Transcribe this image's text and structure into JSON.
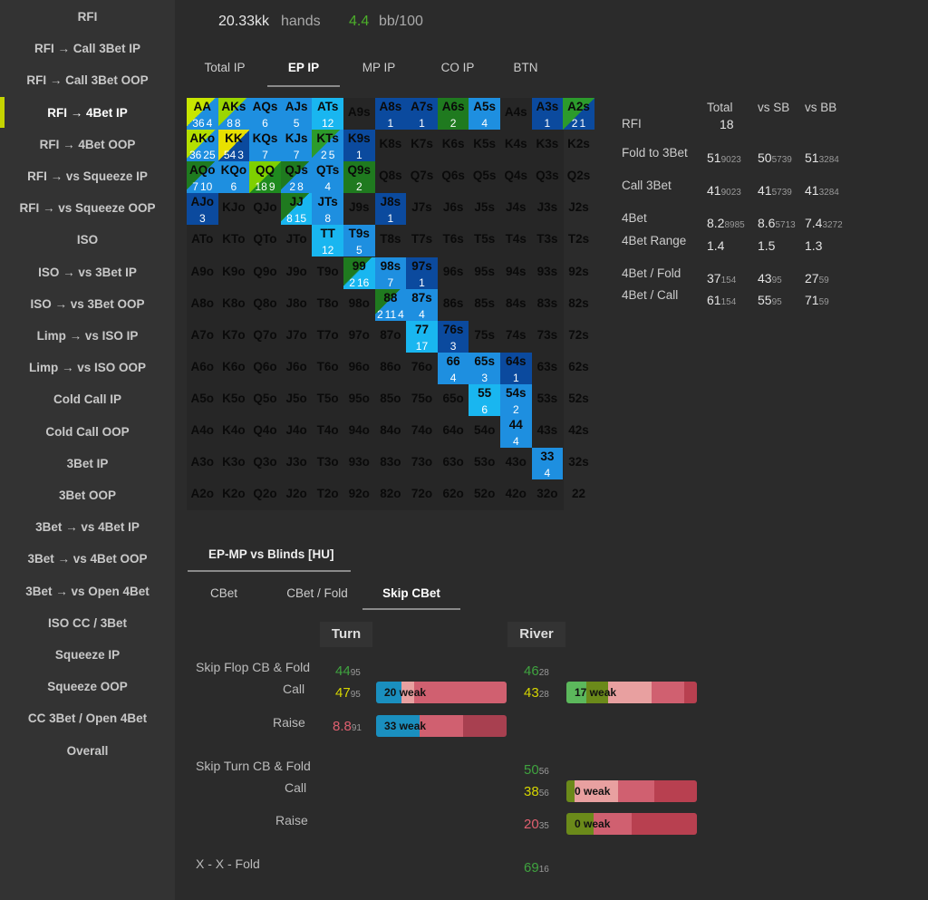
{
  "sidebar": {
    "items": [
      {
        "label": "RFI"
      },
      {
        "label": "RFI → Call 3Bet IP"
      },
      {
        "label": "RFI → Call 3Bet OOP"
      },
      {
        "label": "RFI → 4Bet IP",
        "active": true
      },
      {
        "label": "RFI → 4Bet OOP"
      },
      {
        "label": "RFI → vs Squeeze IP"
      },
      {
        "label": "RFI → vs Squeeze OOP"
      },
      {
        "label": "ISO"
      },
      {
        "label": "ISO → vs 3Bet IP"
      },
      {
        "label": "ISO → vs 3Bet OOP"
      },
      {
        "label": "Limp → vs ISO IP"
      },
      {
        "label": "Limp → vs ISO OOP"
      },
      {
        "label": "Cold Call IP"
      },
      {
        "label": "Cold Call OOP"
      },
      {
        "label": "3Bet IP"
      },
      {
        "label": "3Bet OOP"
      },
      {
        "label": "3Bet → vs 4Bet IP"
      },
      {
        "label": "3Bet → vs 4Bet OOP"
      },
      {
        "label": "3Bet → vs Open 4Bet"
      },
      {
        "label": "ISO CC / 3Bet"
      },
      {
        "label": "Squeeze IP"
      },
      {
        "label": "Squeeze OOP"
      },
      {
        "label": "CC 3Bet / Open 4Bet"
      },
      {
        "label": "Overall"
      }
    ]
  },
  "header": {
    "hands": "20.33kk",
    "hands_label": "hands",
    "winrate": "4.4",
    "winrate_label": "bb/100",
    "winrate_color": "#4caf2a"
  },
  "position_tabs": [
    "Total IP",
    "EP IP",
    "MP IP",
    "CO IP",
    "BTN"
  ],
  "grid": {
    "rows": [
      [
        "AA",
        "AKs",
        "AQs",
        "AJs",
        "ATs",
        "A9s",
        "A8s",
        "A7s",
        "A6s",
        "A5s",
        "A4s",
        "A3s",
        "A2s"
      ],
      [
        "AKo",
        "KK",
        "KQs",
        "KJs",
        "KTs",
        "K9s",
        "K8s",
        "K7s",
        "K6s",
        "K5s",
        "K4s",
        "K3s",
        "K2s"
      ],
      [
        "AQo",
        "KQo",
        "QQ",
        "QJs",
        "QTs",
        "Q9s",
        "Q8s",
        "Q7s",
        "Q6s",
        "Q5s",
        "Q4s",
        "Q3s",
        "Q2s"
      ],
      [
        "AJo",
        "KJo",
        "QJo",
        "JJ",
        "JTs",
        "J9s",
        "J8s",
        "J7s",
        "J6s",
        "J5s",
        "J4s",
        "J3s",
        "J2s"
      ],
      [
        "ATo",
        "KTo",
        "QTo",
        "JTo",
        "TT",
        "T9s",
        "T8s",
        "T7s",
        "T6s",
        "T5s",
        "T4s",
        "T3s",
        "T2s"
      ],
      [
        "A9o",
        "K9o",
        "Q9o",
        "J9o",
        "T9o",
        "99",
        "98s",
        "97s",
        "96s",
        "95s",
        "94s",
        "93s",
        "92s"
      ],
      [
        "A8o",
        "K8o",
        "Q8o",
        "J8o",
        "T8o",
        "98o",
        "88",
        "87s",
        "86s",
        "85s",
        "84s",
        "83s",
        "82s"
      ],
      [
        "A7o",
        "K7o",
        "Q7o",
        "J7o",
        "T7o",
        "97o",
        "87o",
        "77",
        "76s",
        "75s",
        "74s",
        "73s",
        "72s"
      ],
      [
        "A6o",
        "K6o",
        "Q6o",
        "J6o",
        "T6o",
        "96o",
        "86o",
        "76o",
        "66",
        "65s",
        "64s",
        "63s",
        "62s"
      ],
      [
        "A5o",
        "K5o",
        "Q5o",
        "J5o",
        "T5o",
        "95o",
        "85o",
        "75o",
        "65o",
        "55",
        "54s",
        "53s",
        "52s"
      ],
      [
        "A4o",
        "K4o",
        "Q4o",
        "J4o",
        "T4o",
        "94o",
        "84o",
        "74o",
        "64o",
        "54o",
        "44",
        "43s",
        "42s"
      ],
      [
        "A3o",
        "K3o",
        "Q3o",
        "J3o",
        "T3o",
        "93o",
        "83o",
        "73o",
        "63o",
        "53o",
        "43o",
        "33",
        "32s"
      ],
      [
        "A2o",
        "K2o",
        "Q2o",
        "J2o",
        "T2o",
        "92o",
        "82o",
        "72o",
        "62o",
        "52o",
        "42o",
        "32o",
        "22"
      ]
    ],
    "filled": [
      {
        "r": 0,
        "c": 0,
        "bg": "split-lime",
        "nums": [
          "36",
          "4"
        ]
      },
      {
        "r": 0,
        "c": 1,
        "bg": "split-green",
        "nums": [
          "8",
          "8"
        ]
      },
      {
        "r": 0,
        "c": 2,
        "bg": "#1e8fe0",
        "nums": [
          "6"
        ]
      },
      {
        "r": 0,
        "c": 3,
        "bg": "#1e8fe0",
        "nums": [
          "5"
        ]
      },
      {
        "r": 0,
        "c": 4,
        "bg": "#19b6f0",
        "nums": [
          "12"
        ]
      },
      {
        "r": 0,
        "c": 6,
        "bg": "#0b4a9e",
        "nums": [
          "1"
        ]
      },
      {
        "r": 0,
        "c": 7,
        "bg": "#0b4a9e",
        "nums": [
          "1"
        ]
      },
      {
        "r": 0,
        "c": 8,
        "bg": "#1f7a1f",
        "nums": [
          "2"
        ]
      },
      {
        "r": 0,
        "c": 9,
        "bg": "#1e8fe0",
        "nums": [
          "4"
        ]
      },
      {
        "r": 0,
        "c": 11,
        "bg": "#0b4a9e",
        "nums": [
          "1"
        ]
      },
      {
        "r": 0,
        "c": 12,
        "bg": "split-green2",
        "nums": [
          "2",
          "1"
        ]
      },
      {
        "r": 1,
        "c": 0,
        "bg": "split-lime2",
        "nums": [
          "36",
          "25"
        ]
      },
      {
        "r": 1,
        "c": 1,
        "bg": "split-yellow",
        "nums": [
          "54",
          "3"
        ]
      },
      {
        "r": 1,
        "c": 2,
        "bg": "#1e8fe0",
        "nums": [
          "7"
        ]
      },
      {
        "r": 1,
        "c": 3,
        "bg": "#1e8fe0",
        "nums": [
          "7"
        ]
      },
      {
        "r": 1,
        "c": 4,
        "bg": "split-kts",
        "nums": [
          "2",
          "5"
        ]
      },
      {
        "r": 1,
        "c": 5,
        "bg": "#0b4a9e",
        "nums": [
          "1"
        ]
      },
      {
        "r": 2,
        "c": 0,
        "bg": "split-green3",
        "nums": [
          "7",
          "10"
        ]
      },
      {
        "r": 2,
        "c": 1,
        "bg": "#1e8fe0",
        "nums": [
          "6"
        ]
      },
      {
        "r": 2,
        "c": 2,
        "bg": "split-qq",
        "nums": [
          "18",
          "9"
        ]
      },
      {
        "r": 2,
        "c": 3,
        "bg": "split-qj",
        "nums": [
          "2",
          "8"
        ]
      },
      {
        "r": 2,
        "c": 4,
        "bg": "#1e8fe0",
        "nums": [
          "4"
        ]
      },
      {
        "r": 2,
        "c": 5,
        "bg": "#1f7a1f",
        "nums": [
          "2"
        ]
      },
      {
        "r": 3,
        "c": 0,
        "bg": "#0b4a9e",
        "nums": [
          "3"
        ]
      },
      {
        "r": 3,
        "c": 3,
        "bg": "split-jj",
        "nums": [
          "8",
          "15"
        ]
      },
      {
        "r": 3,
        "c": 4,
        "bg": "#1e8fe0",
        "nums": [
          "8"
        ]
      },
      {
        "r": 3,
        "c": 6,
        "bg": "#0b4a9e",
        "nums": [
          "1"
        ]
      },
      {
        "r": 4,
        "c": 4,
        "bg": "#19b6f0",
        "nums": [
          "12"
        ]
      },
      {
        "r": 4,
        "c": 5,
        "bg": "#1e8fe0",
        "nums": [
          "5"
        ]
      },
      {
        "r": 5,
        "c": 5,
        "bg": "split-99",
        "nums": [
          "2",
          "16"
        ]
      },
      {
        "r": 5,
        "c": 6,
        "bg": "#1e8fe0",
        "nums": [
          "7"
        ]
      },
      {
        "r": 5,
        "c": 7,
        "bg": "#0b4a9e",
        "nums": [
          "1"
        ]
      },
      {
        "r": 6,
        "c": 6,
        "bg": "split-88",
        "nums": [
          "2",
          "11",
          "4"
        ]
      },
      {
        "r": 6,
        "c": 7,
        "bg": "#1e8fe0",
        "nums": [
          "4"
        ]
      },
      {
        "r": 7,
        "c": 7,
        "bg": "#19b6f0",
        "nums": [
          "17"
        ]
      },
      {
        "r": 7,
        "c": 8,
        "bg": "#0b4a9e",
        "nums": [
          "3"
        ]
      },
      {
        "r": 8,
        "c": 8,
        "bg": "#1e8fe0",
        "nums": [
          "4"
        ]
      },
      {
        "r": 8,
        "c": 9,
        "bg": "#1e8fe0",
        "nums": [
          "3"
        ]
      },
      {
        "r": 8,
        "c": 10,
        "bg": "#0b4a9e",
        "nums": [
          "1"
        ]
      },
      {
        "r": 9,
        "c": 9,
        "bg": "#19b6f0",
        "nums": [
          "6"
        ]
      },
      {
        "r": 9,
        "c": 10,
        "bg": "#1e8fe0",
        "nums": [
          "2"
        ]
      },
      {
        "r": 10,
        "c": 10,
        "bg": "#1e8fe0",
        "nums": [
          "4"
        ]
      },
      {
        "r": 11,
        "c": 11,
        "bg": "#1e8fe0",
        "nums": [
          "4"
        ]
      }
    ]
  },
  "stats": {
    "headers": [
      "Total",
      "vs SB",
      "vs BB"
    ],
    "rows": [
      {
        "label": "RFI",
        "vals": [
          [
            "18",
            ""
          ]
        ]
      },
      {
        "label": "Fold to 3Bet",
        "vals": [
          [
            "51",
            "9023"
          ],
          [
            "50",
            "5739"
          ],
          [
            "51",
            "3284"
          ]
        ]
      },
      {
        "label": "Call 3Bet",
        "vals": [
          [
            "41",
            "9023"
          ],
          [
            "41",
            "5739"
          ],
          [
            "41",
            "3284"
          ]
        ]
      },
      {
        "label": "4Bet",
        "vals": [
          [
            "8.2",
            "8985"
          ],
          [
            "8.6",
            "5713"
          ],
          [
            "7.4",
            "3272"
          ]
        ]
      },
      {
        "label": "4Bet Range",
        "vals": [
          [
            "1.4",
            ""
          ],
          [
            "1.5",
            ""
          ],
          [
            "1.3",
            ""
          ]
        ]
      },
      {
        "label": "4Bet / Fold",
        "vals": [
          [
            "37",
            "154"
          ],
          [
            "43",
            "95"
          ],
          [
            "27",
            "59"
          ]
        ]
      },
      {
        "label": "4Bet / Call",
        "vals": [
          [
            "61",
            "154"
          ],
          [
            "55",
            "95"
          ],
          [
            "71",
            "59"
          ]
        ]
      }
    ]
  },
  "section": {
    "title": "EP-MP vs Blinds [HU]"
  },
  "sub_tabs": [
    "CBet",
    "CBet / Fold",
    "Skip CBet"
  ],
  "columns": {
    "turn": "Turn",
    "river": "River"
  },
  "rows": {
    "sf_fold": {
      "label": "Skip Flop CB & Fold",
      "turn": "44",
      "turn_s": "95",
      "river": "46",
      "river_s": "28"
    },
    "sf_call": {
      "label": "Call",
      "turn": "47",
      "turn_s": "95",
      "river": "43",
      "river_s": "28",
      "turn_bar": "20 weak",
      "river_bar": "17 weak"
    },
    "sf_raise": {
      "label": "Raise",
      "turn": "8.8",
      "turn_s": "91",
      "turn_bar": "33 weak"
    },
    "st_fold": {
      "label": "Skip Turn CB & Fold",
      "river": "50",
      "river_s": "56"
    },
    "st_call": {
      "label": "Call",
      "river": "38",
      "river_s": "56",
      "river_bar": "0 weak"
    },
    "st_raise": {
      "label": "Raise",
      "river": "20",
      "river_s": "35",
      "river_bar": "0 weak"
    },
    "xxf": {
      "label": "X - X - Fold",
      "river": "69",
      "river_s": "16"
    }
  }
}
